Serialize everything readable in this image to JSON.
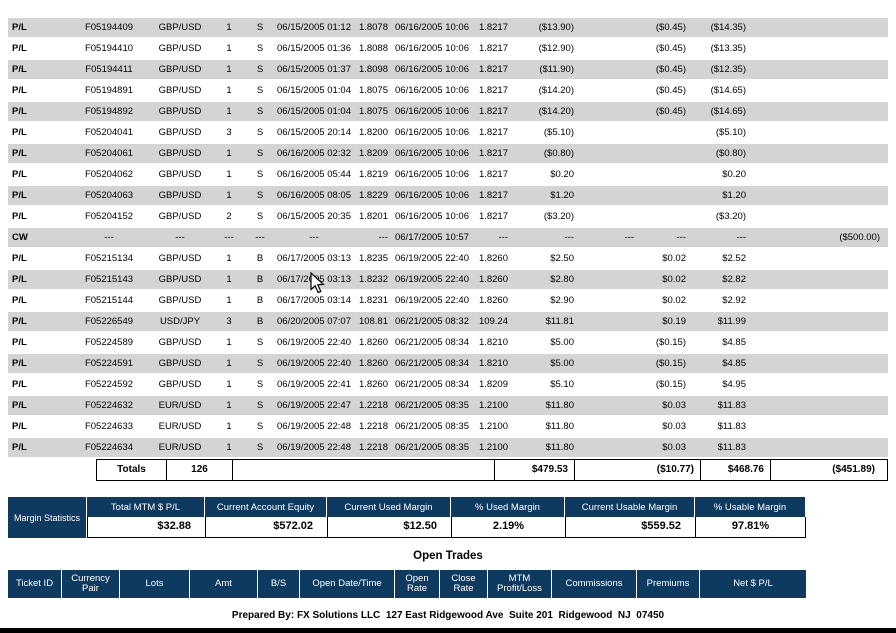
{
  "colors": {
    "header_bg": "#0e3a5f",
    "row_gray": "#d4d4d4",
    "row_white": "#ffffff",
    "bottom_bar": "#000000"
  },
  "report": {
    "col_keys": [
      "type",
      "ticket",
      "pair",
      "lots",
      "bs",
      "open_dt",
      "open_rate",
      "close_dt",
      "close_rate",
      "mtm",
      "comm",
      "prem",
      "net",
      "bal"
    ],
    "rows": [
      {
        "type": "P/L",
        "ticket": "F05194409",
        "pair": "GBP/USD",
        "lots": "1",
        "bs": "S",
        "open_dt": "06/15/2005 01:12",
        "open_rate": "1.8078",
        "close_dt": "06/16/2005 10:06",
        "close_rate": "1.8217",
        "mtm": "($13.90)",
        "comm": "",
        "prem": "($0.45)",
        "net": "($14.35)",
        "bal": ""
      },
      {
        "type": "P/L",
        "ticket": "F05194410",
        "pair": "GBP/USD",
        "lots": "1",
        "bs": "S",
        "open_dt": "06/15/2005 01:36",
        "open_rate": "1.8088",
        "close_dt": "06/16/2005 10:06",
        "close_rate": "1.8217",
        "mtm": "($12.90)",
        "comm": "",
        "prem": "($0.45)",
        "net": "($13.35)",
        "bal": ""
      },
      {
        "type": "P/L",
        "ticket": "F05194411",
        "pair": "GBP/USD",
        "lots": "1",
        "bs": "S",
        "open_dt": "06/15/2005 01:37",
        "open_rate": "1.8098",
        "close_dt": "06/16/2005 10:06",
        "close_rate": "1.8217",
        "mtm": "($11.90)",
        "comm": "",
        "prem": "($0.45)",
        "net": "($12.35)",
        "bal": ""
      },
      {
        "type": "P/L",
        "ticket": "F05194891",
        "pair": "GBP/USD",
        "lots": "1",
        "bs": "S",
        "open_dt": "06/15/2005 01:04",
        "open_rate": "1.8075",
        "close_dt": "06/16/2005 10:06",
        "close_rate": "1.8217",
        "mtm": "($14.20)",
        "comm": "",
        "prem": "($0.45)",
        "net": "($14.65)",
        "bal": ""
      },
      {
        "type": "P/L",
        "ticket": "F05194892",
        "pair": "GBP/USD",
        "lots": "1",
        "bs": "S",
        "open_dt": "06/15/2005 01:04",
        "open_rate": "1.8075",
        "close_dt": "06/16/2005 10:06",
        "close_rate": "1.8217",
        "mtm": "($14.20)",
        "comm": "",
        "prem": "($0.45)",
        "net": "($14.65)",
        "bal": ""
      },
      {
        "type": "P/L",
        "ticket": "F05204041",
        "pair": "GBP/USD",
        "lots": "3",
        "bs": "S",
        "open_dt": "06/15/2005 20:14",
        "open_rate": "1.8200",
        "close_dt": "06/16/2005 10:06",
        "close_rate": "1.8217",
        "mtm": "($5.10)",
        "comm": "",
        "prem": "",
        "net": "($5.10)",
        "bal": ""
      },
      {
        "type": "P/L",
        "ticket": "F05204061",
        "pair": "GBP/USD",
        "lots": "1",
        "bs": "S",
        "open_dt": "06/16/2005 02:32",
        "open_rate": "1.8209",
        "close_dt": "06/16/2005 10:06",
        "close_rate": "1.8217",
        "mtm": "($0.80)",
        "comm": "",
        "prem": "",
        "net": "($0.80)",
        "bal": ""
      },
      {
        "type": "P/L",
        "ticket": "F05204062",
        "pair": "GBP/USD",
        "lots": "1",
        "bs": "S",
        "open_dt": "06/16/2005 05:44",
        "open_rate": "1.8219",
        "close_dt": "06/16/2005 10:06",
        "close_rate": "1.8217",
        "mtm": "$0.20",
        "comm": "",
        "prem": "",
        "net": "$0.20",
        "bal": ""
      },
      {
        "type": "P/L",
        "ticket": "F05204063",
        "pair": "GBP/USD",
        "lots": "1",
        "bs": "S",
        "open_dt": "06/16/2005 08:05",
        "open_rate": "1.8229",
        "close_dt": "06/16/2005 10:06",
        "close_rate": "1.8217",
        "mtm": "$1.20",
        "comm": "",
        "prem": "",
        "net": "$1.20",
        "bal": ""
      },
      {
        "type": "P/L",
        "ticket": "F05204152",
        "pair": "GBP/USD",
        "lots": "2",
        "bs": "S",
        "open_dt": "06/15/2005 20:35",
        "open_rate": "1.8201",
        "close_dt": "06/16/2005 10:06",
        "close_rate": "1.8217",
        "mtm": "($3.20)",
        "comm": "",
        "prem": "",
        "net": "($3.20)",
        "bal": ""
      },
      {
        "type": "CW",
        "ticket": "---",
        "pair": "---",
        "lots": "---",
        "bs": "---",
        "open_dt": "---",
        "open_rate": "---",
        "close_dt": "06/17/2005 10:57",
        "close_rate": "---",
        "mtm": "---",
        "comm": "---",
        "prem": "---",
        "net": "---",
        "bal": "($500.00)"
      },
      {
        "type": "P/L",
        "ticket": "F05215134",
        "pair": "GBP/USD",
        "lots": "1",
        "bs": "B",
        "open_dt": "06/17/2005 03:13",
        "open_rate": "1.8235",
        "close_dt": "06/19/2005 22:40",
        "close_rate": "1.8260",
        "mtm": "$2.50",
        "comm": "",
        "prem": "$0.02",
        "net": "$2.52",
        "bal": ""
      },
      {
        "type": "P/L",
        "ticket": "F05215143",
        "pair": "GBP/USD",
        "lots": "1",
        "bs": "B",
        "open_dt": "06/17/2005 03:13",
        "open_rate": "1.8232",
        "close_dt": "06/19/2005 22:40",
        "close_rate": "1.8260",
        "mtm": "$2.80",
        "comm": "",
        "prem": "$0.02",
        "net": "$2.82",
        "bal": ""
      },
      {
        "type": "P/L",
        "ticket": "F05215144",
        "pair": "GBP/USD",
        "lots": "1",
        "bs": "B",
        "open_dt": "06/17/2005 03:14",
        "open_rate": "1.8231",
        "close_dt": "06/19/2005 22:40",
        "close_rate": "1.8260",
        "mtm": "$2.90",
        "comm": "",
        "prem": "$0.02",
        "net": "$2.92",
        "bal": ""
      },
      {
        "type": "P/L",
        "ticket": "F05226549",
        "pair": "USD/JPY",
        "lots": "3",
        "bs": "B",
        "open_dt": "06/20/2005 07:07",
        "open_rate": "108.81",
        "close_dt": "06/21/2005 08:32",
        "close_rate": "109.24",
        "mtm": "$11.81",
        "comm": "",
        "prem": "$0.19",
        "net": "$11.99",
        "bal": ""
      },
      {
        "type": "P/L",
        "ticket": "F05224589",
        "pair": "GBP/USD",
        "lots": "1",
        "bs": "S",
        "open_dt": "06/19/2005 22:40",
        "open_rate": "1.8260",
        "close_dt": "06/21/2005 08:34",
        "close_rate": "1.8210",
        "mtm": "$5.00",
        "comm": "",
        "prem": "($0.15)",
        "net": "$4.85",
        "bal": ""
      },
      {
        "type": "P/L",
        "ticket": "F05224591",
        "pair": "GBP/USD",
        "lots": "1",
        "bs": "S",
        "open_dt": "06/19/2005 22:40",
        "open_rate": "1.8260",
        "close_dt": "06/21/2005 08:34",
        "close_rate": "1.8210",
        "mtm": "$5.00",
        "comm": "",
        "prem": "($0.15)",
        "net": "$4.85",
        "bal": ""
      },
      {
        "type": "P/L",
        "ticket": "F05224592",
        "pair": "GBP/USD",
        "lots": "1",
        "bs": "S",
        "open_dt": "06/19/2005 22:41",
        "open_rate": "1.8260",
        "close_dt": "06/21/2005 08:34",
        "close_rate": "1.8209",
        "mtm": "$5.10",
        "comm": "",
        "prem": "($0.15)",
        "net": "$4.95",
        "bal": ""
      },
      {
        "type": "P/L",
        "ticket": "F05224632",
        "pair": "EUR/USD",
        "lots": "1",
        "bs": "S",
        "open_dt": "06/19/2005 22:47",
        "open_rate": "1.2218",
        "close_dt": "06/21/2005 08:35",
        "close_rate": "1.2100",
        "mtm": "$11.80",
        "comm": "",
        "prem": "$0.03",
        "net": "$11.83",
        "bal": ""
      },
      {
        "type": "P/L",
        "ticket": "F05224633",
        "pair": "EUR/USD",
        "lots": "1",
        "bs": "S",
        "open_dt": "06/19/2005 22:48",
        "open_rate": "1.2218",
        "close_dt": "06/21/2005 08:35",
        "close_rate": "1.2100",
        "mtm": "$11.80",
        "comm": "",
        "prem": "$0.03",
        "net": "$11.83",
        "bal": ""
      },
      {
        "type": "P/L",
        "ticket": "F05224634",
        "pair": "EUR/USD",
        "lots": "1",
        "bs": "S",
        "open_dt": "06/19/2005 22:48",
        "open_rate": "1.2218",
        "close_dt": "06/21/2005 08:35",
        "close_rate": "1.2100",
        "mtm": "$11.80",
        "comm": "",
        "prem": "$0.03",
        "net": "$11.83",
        "bal": ""
      }
    ],
    "totals": {
      "label": "Totals",
      "lots": "126",
      "spacer": "",
      "mtm": "$479.53",
      "comm_prem": "($10.77)",
      "net": "$468.76",
      "bal": "($451.89)"
    }
  },
  "margin": {
    "label": "Margin Statistics",
    "headers": [
      "Total MTM $ P/L",
      "Current Account Equity",
      "Current Used Margin",
      "% Used Margin",
      "Current Usable Margin",
      "% Usable Margin"
    ],
    "values": [
      "$32.88",
      "$572.02",
      "$12.50",
      "2.19%",
      "$559.52",
      "97.81%"
    ]
  },
  "open_trades": {
    "title": "Open Trades",
    "headers": [
      "Ticket ID",
      "Currency\nPair",
      "Lots",
      "Amt",
      "B/S",
      "Open Date/Time",
      "Open\nRate",
      "Close\nRate",
      "MTM\nProfit/Loss",
      "Commissions",
      "Premiums",
      "Net $ P/L"
    ]
  },
  "footer": "Prepared By: FX Solutions LLC  127 East Ridgewood Ave  Suite 201  Ridgewood  NJ  07450"
}
